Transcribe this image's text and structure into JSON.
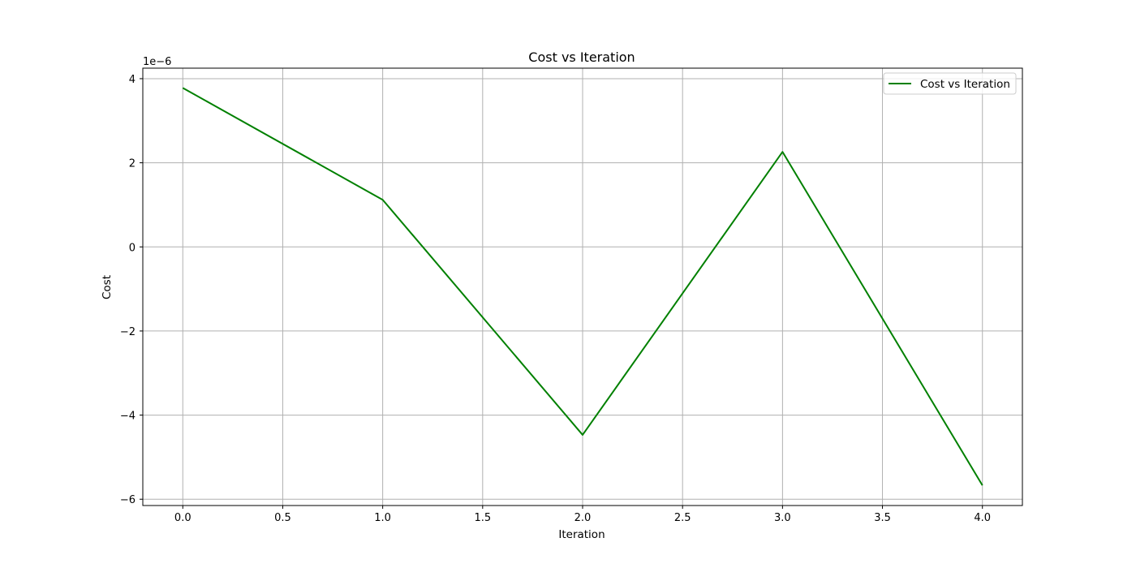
{
  "chart_data": {
    "type": "line",
    "title": "Cost vs Iteration",
    "xlabel": "Iteration",
    "ylabel": "Cost",
    "y_offset_label": "1e−6",
    "xlim": [
      -0.2,
      4.2
    ],
    "ylim": [
      -6.15,
      4.25
    ],
    "x_ticks": [
      0.0,
      0.5,
      1.0,
      1.5,
      2.0,
      2.5,
      3.0,
      3.5,
      4.0
    ],
    "x_tick_labels": [
      "0.0",
      "0.5",
      "1.0",
      "1.5",
      "2.0",
      "2.5",
      "3.0",
      "3.5",
      "4.0"
    ],
    "y_ticks": [
      -6,
      -4,
      -2,
      0,
      2,
      4
    ],
    "y_tick_labels": [
      "−6",
      "−4",
      "−2",
      "0",
      "2",
      "4"
    ],
    "grid": true,
    "legend_position": "top-right",
    "series": [
      {
        "name": "Cost vs Iteration",
        "color": "#008000",
        "x": [
          0,
          1,
          2,
          3,
          4
        ],
        "y": [
          3.78,
          1.12,
          -4.47,
          2.26,
          -5.67
        ]
      }
    ]
  }
}
